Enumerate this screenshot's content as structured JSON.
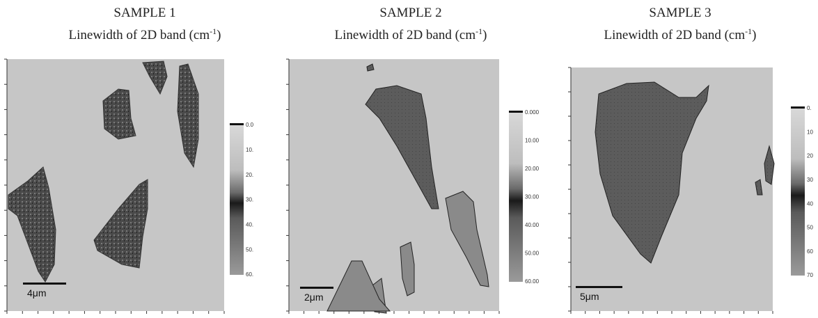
{
  "panels": [
    {
      "title": "SAMPLE 1",
      "subtitle": [
        "Linewidth of 2D band (cm",
        "-1",
        ")"
      ],
      "colorbar_labels": [
        "0.0",
        "10.",
        "20.",
        "30.",
        "40.",
        "50.",
        "60."
      ],
      "scale_bar": "4μm"
    },
    {
      "title": "SAMPLE 2",
      "subtitle": [
        "Linewidth of 2D band (cm",
        "-1",
        ")"
      ],
      "colorbar_labels": [
        "0.000",
        "10.00",
        "20.00",
        "30.00",
        "40.00",
        "50.00",
        "60.00"
      ],
      "scale_bar": "2μm"
    },
    {
      "title": "SAMPLE  3",
      "subtitle": [
        "Linewidth of 2D band (cm",
        "-1",
        ")"
      ],
      "colorbar_labels": [
        "0.",
        "10",
        "20",
        "30",
        "40",
        "50",
        "60",
        "70"
      ],
      "scale_bar": "5μm"
    }
  ]
}
